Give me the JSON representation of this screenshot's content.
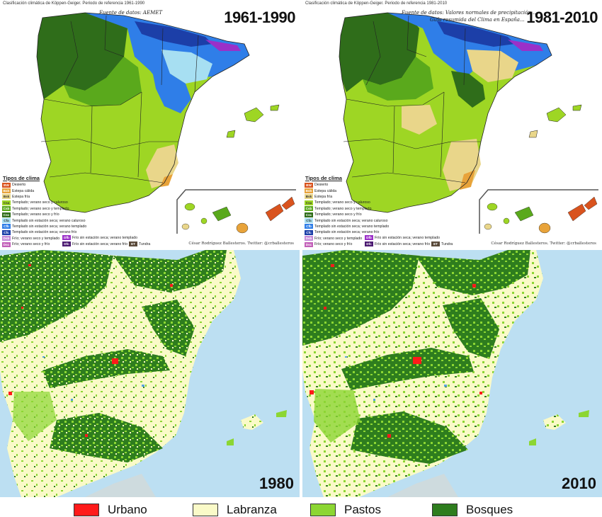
{
  "top_left": {
    "header": "Clasificación climática de Köppen-Geiger. Periodo de referencia 1961-1990",
    "source": "Fuente de datos: AEMET",
    "period": "1961-1990",
    "credit": "César Rodríguez Ballesteros. Twitter: @crballesteros"
  },
  "top_right": {
    "header": "Clasificación climática de Köppen-Geiger. Periodo de referencia 1981-2010",
    "source_line1": "Fuente de datos: Valores normales de precipitación...",
    "source_line2": "Guía resumida del Clima en España...",
    "period": "1981-2010",
    "credit": "César Rodríguez Ballesteros. Twitter: @crballesteros"
  },
  "climate_legend": {
    "title": "Tipos de clima",
    "items": [
      {
        "code": "BW",
        "label": "Desierto",
        "color": "#d9531e"
      },
      {
        "code": "Bsh",
        "label": "Estepa cálida",
        "color": "#e8a33a"
      },
      {
        "code": "Bsk",
        "label": "Estepa fría",
        "color": "#e9d68a"
      },
      {
        "code": "Csa",
        "label": "Templado; verano seco y caluroso",
        "color": "#9ed624"
      },
      {
        "code": "Csb",
        "label": "Templado; verano seco y templado",
        "color": "#5aa91c"
      },
      {
        "code": "Csc",
        "label": "Templado; verano seco y frío",
        "color": "#2f6d1a"
      },
      {
        "code": "Cfa",
        "label": "Templado sin estación seca; verano caluroso",
        "color": "#a7dff2"
      },
      {
        "code": "Cfb",
        "label": "Templado sin estación seca; verano templado",
        "color": "#2f7ee8"
      },
      {
        "code": "Cfc",
        "label": "Templado sin estación seca; verano frío",
        "color": "#1c3fa8"
      },
      {
        "code": "Dsb",
        "label": "Frío; verano seco y templado",
        "color": "#c58ad8"
      },
      {
        "code": "Dsc",
        "label": "Frío; verano seco y frío",
        "color": "#c25eb8"
      }
    ],
    "extra_items": [
      {
        "code": "Dfb",
        "label": "Frío sin estación seca; verano templado",
        "color": "#9b30c8"
      },
      {
        "code": "Dfc",
        "label": "Frío sin estación seca; verano frío",
        "color": "#4a1870"
      },
      {
        "code": "ET",
        "label": "Tundra",
        "color": "#5a4a3a"
      }
    ]
  },
  "bottom_left": {
    "year": "1980"
  },
  "bottom_right": {
    "year": "2010"
  },
  "land_legend": {
    "items": [
      {
        "label": "Urbano",
        "color": "#ff1a1a"
      },
      {
        "label": "Labranza",
        "color": "#fafac8"
      },
      {
        "label": "Pastos",
        "color": "#8cd633"
      },
      {
        "label": "Bosques",
        "color": "#2e7d1e"
      }
    ]
  },
  "colors": {
    "sea": "#bcdff2",
    "csa": "#9ed624",
    "csb": "#5aa91c",
    "cfb": "#2f7ee8",
    "cfa": "#a7dff2",
    "bsk": "#e9d68a",
    "labranza": "#fafac8",
    "pastos": "#8cd633",
    "bosques": "#2e7d1e",
    "urbano": "#ff1a1a"
  }
}
